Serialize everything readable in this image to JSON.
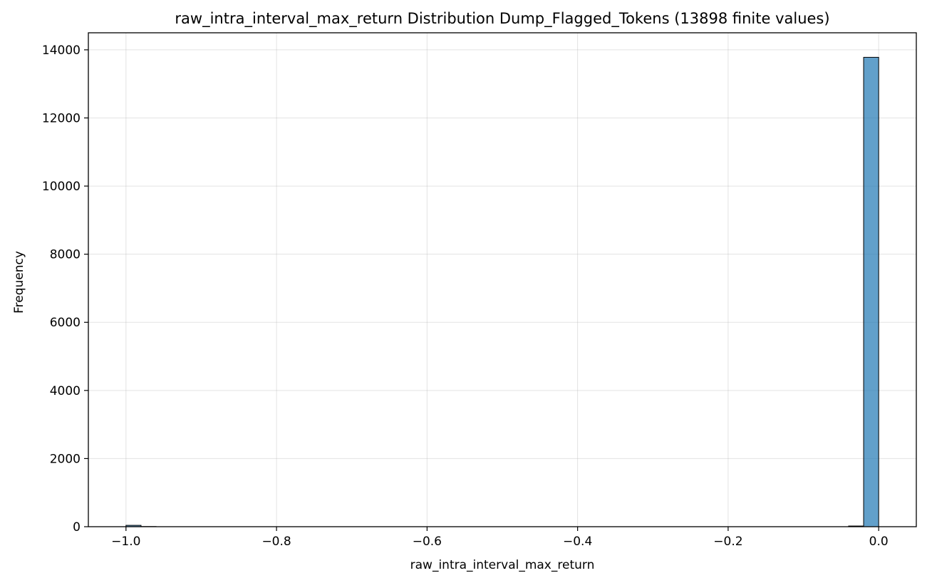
{
  "chart_data": {
    "type": "bar",
    "title": "raw_intra_interval_max_return Distribution Dump_Flagged_Tokens (13898 finite values)",
    "xlabel": "raw_intra_interval_max_return",
    "ylabel": "Frequency",
    "xlim": [
      -1.05,
      0.05
    ],
    "ylim": [
      0,
      14500
    ],
    "xticks": [
      -1.0,
      -0.8,
      -0.6,
      -0.4,
      -0.2,
      0.0
    ],
    "xtick_labels": [
      "−1.0",
      "−0.8",
      "−0.6",
      "−0.4",
      "−0.2",
      "0.0"
    ],
    "yticks": [
      0,
      2000,
      4000,
      6000,
      8000,
      10000,
      12000,
      14000
    ],
    "ytick_labels": [
      "0",
      "2000",
      "4000",
      "6000",
      "8000",
      "10000",
      "12000",
      "14000"
    ],
    "grid": true,
    "bins": {
      "start": -1.0,
      "width": 0.02,
      "counts": [
        40,
        5,
        0,
        0,
        0,
        0,
        0,
        0,
        0,
        0,
        0,
        0,
        0,
        0,
        0,
        0,
        0,
        0,
        0,
        0,
        0,
        0,
        0,
        0,
        0,
        0,
        0,
        0,
        0,
        0,
        0,
        0,
        0,
        0,
        0,
        0,
        0,
        0,
        0,
        0,
        0,
        0,
        0,
        0,
        0,
        0,
        0,
        0,
        20,
        13780
      ]
    },
    "colors": {
      "bar_fill": "#1f77b4",
      "bar_edge": "#000000",
      "grid": "#b0b0b0"
    }
  }
}
